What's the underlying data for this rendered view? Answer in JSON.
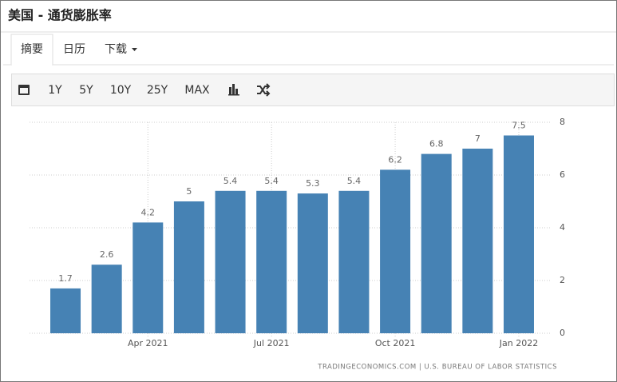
{
  "header": {
    "title": "美国 - 通货膨胀率"
  },
  "tabs": [
    "摘要",
    "日历",
    "下载"
  ],
  "toolbar": [
    "1Y",
    "5Y",
    "10Y",
    "25Y",
    "MAX"
  ],
  "chart_data": {
    "type": "bar",
    "categories": [
      null,
      null,
      "Apr 2021",
      null,
      null,
      "Jul 2021",
      null,
      null,
      "Oct 2021",
      null,
      null,
      "Jan 2022"
    ],
    "values": [
      1.7,
      2.6,
      4.2,
      5,
      5.4,
      5.4,
      5.3,
      5.4,
      6.2,
      6.8,
      7,
      7.5
    ],
    "color": "#4682b4",
    "ylim": [
      0,
      8
    ],
    "yticks": [
      0,
      2,
      4,
      6,
      8
    ],
    "grid": true,
    "source": "TRADINGECONOMICS.COM | U.S. BUREAU OF LABOR STATISTICS"
  }
}
